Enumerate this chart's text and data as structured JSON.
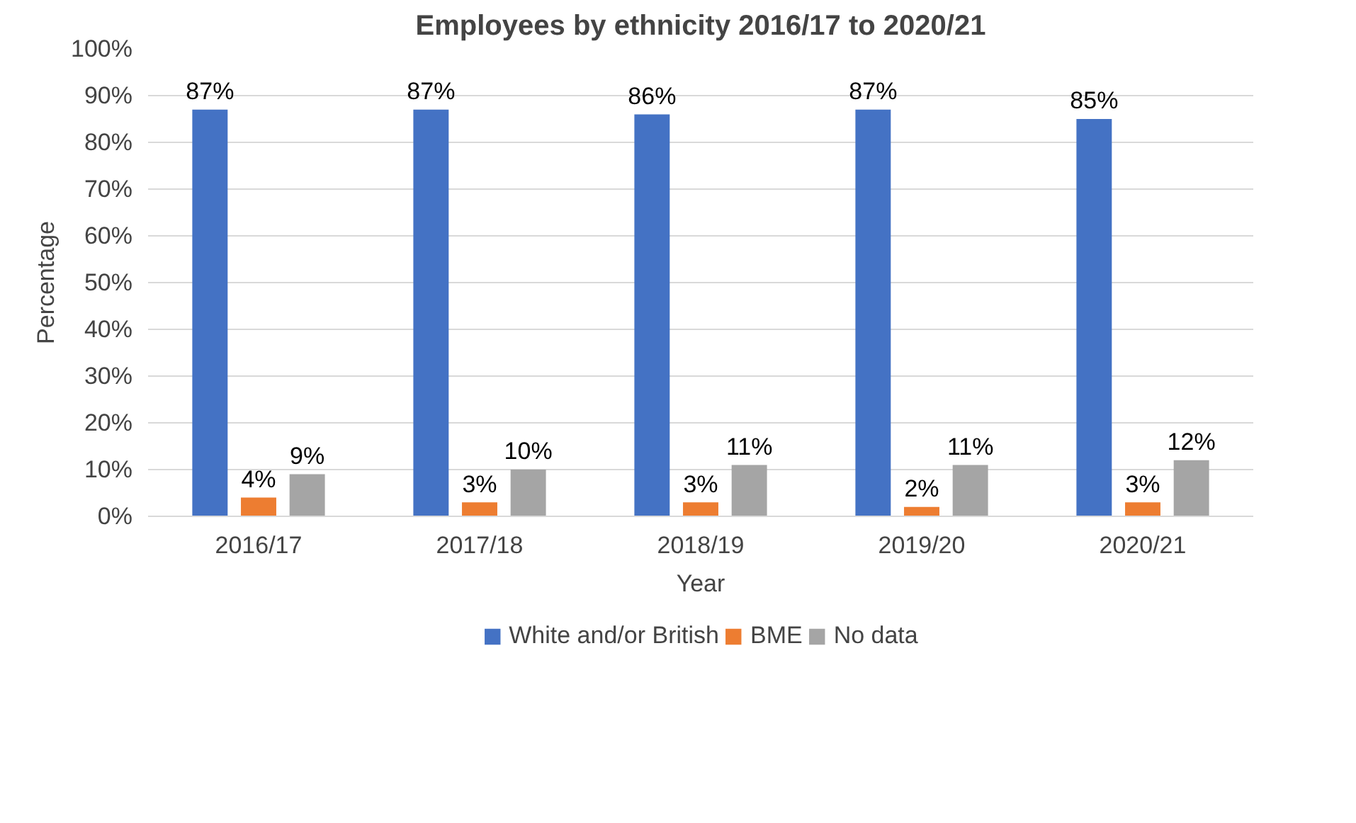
{
  "chart_data": {
    "type": "bar",
    "title": "Employees by ethnicity 2016/17 to 2020/21",
    "xlabel": "Year",
    "ylabel": "Percentage",
    "categories": [
      "2016/17",
      "2017/18",
      "2018/19",
      "2019/20",
      "2020/21"
    ],
    "series": [
      {
        "name": "White and/or British",
        "color": "#4472c4",
        "values": [
          87,
          87,
          86,
          87,
          85
        ],
        "value_labels": [
          "87%",
          "87%",
          "86%",
          "87%",
          "85%"
        ]
      },
      {
        "name": "BME",
        "color": "#ed7d31",
        "values": [
          4,
          3,
          3,
          2,
          3
        ],
        "value_labels": [
          "4%",
          "3%",
          "3%",
          "2%",
          "3%"
        ]
      },
      {
        "name": "No data",
        "color": "#a5a5a5",
        "values": [
          9,
          10,
          11,
          11,
          12
        ],
        "value_labels": [
          "9%",
          "10%",
          "11%",
          "11%",
          "12%"
        ]
      }
    ],
    "ylim": [
      0,
      100
    ],
    "yticks": [
      {
        "value": 0,
        "label": "0%"
      },
      {
        "value": 10,
        "label": "10%"
      },
      {
        "value": 20,
        "label": "20%"
      },
      {
        "value": 30,
        "label": "30%"
      },
      {
        "value": 40,
        "label": "40%"
      },
      {
        "value": 50,
        "label": "50%"
      },
      {
        "value": 60,
        "label": "60%"
      },
      {
        "value": 70,
        "label": "70%"
      },
      {
        "value": 80,
        "label": "80%"
      },
      {
        "value": 90,
        "label": "90%"
      },
      {
        "value": 100,
        "label": "100%"
      }
    ],
    "grid": "y",
    "legend": "bottom"
  }
}
